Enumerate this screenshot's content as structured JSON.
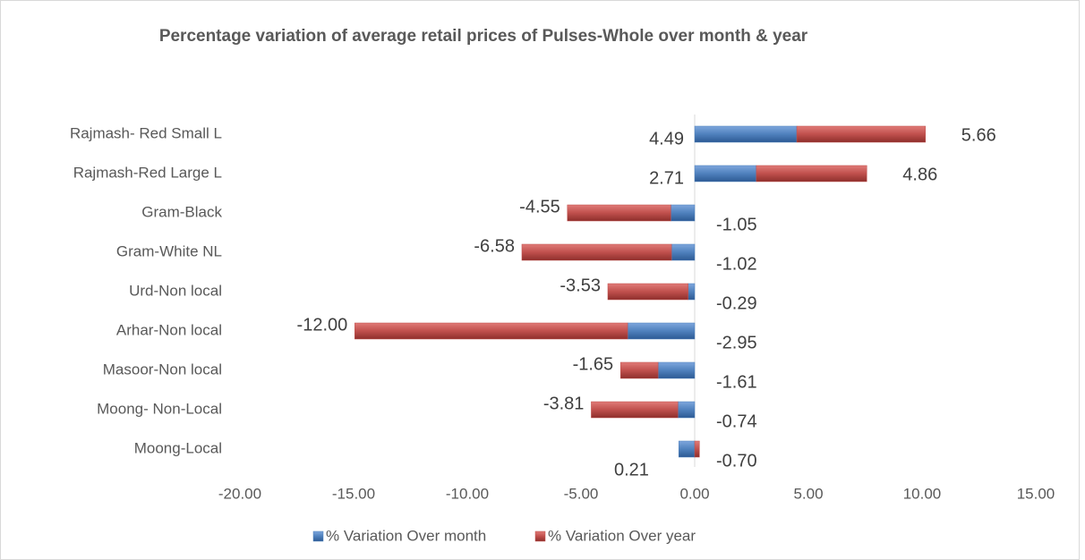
{
  "chart_data": {
    "type": "stacked_hbar",
    "title": "Percentage variation of average retail prices of Pulses-Whole over month & year",
    "categories": [
      "Rajmash- Red Small L",
      "Rajmash-Red Large L",
      "Gram-Black",
      "Gram-White NL",
      "Urd-Non local",
      "Arhar-Non local",
      "Masoor-Non local",
      "Moong- Non-Local",
      "Moong-Local"
    ],
    "series": [
      {
        "name": "% Variation Over month",
        "color": "#4f81bd",
        "values": [
          4.49,
          2.71,
          -1.05,
          -1.02,
          -0.29,
          -2.95,
          -1.61,
          -0.74,
          -0.7
        ],
        "value_labels": [
          "4.49",
          "2.71",
          "-1.05",
          "-1.02",
          "-0.29",
          "-2.95",
          "-1.61",
          "-0.74",
          "-0.70"
        ]
      },
      {
        "name": "% Variation Over year",
        "color": "#c0504d",
        "values": [
          5.66,
          4.86,
          -4.55,
          -6.58,
          -3.53,
          -12.0,
          -1.65,
          -3.81,
          0.21
        ],
        "value_labels": [
          "5.66",
          "4.86",
          "-4.55",
          "-6.58",
          "-3.53",
          "-12.00",
          "-1.65",
          "-3.81",
          "0.21"
        ]
      }
    ],
    "xlim": [
      -20,
      15
    ],
    "xticks": [
      {
        "value": -20,
        "label": "-20.00"
      },
      {
        "value": -15,
        "label": "-15.00"
      },
      {
        "value": -10,
        "label": "-10.00"
      },
      {
        "value": -5,
        "label": "-5.00"
      },
      {
        "value": 0,
        "label": "0.00"
      },
      {
        "value": 5,
        "label": "5.00"
      },
      {
        "value": 10,
        "label": "10.00"
      },
      {
        "value": 15,
        "label": "15.00"
      }
    ],
    "legend": "bottom"
  }
}
